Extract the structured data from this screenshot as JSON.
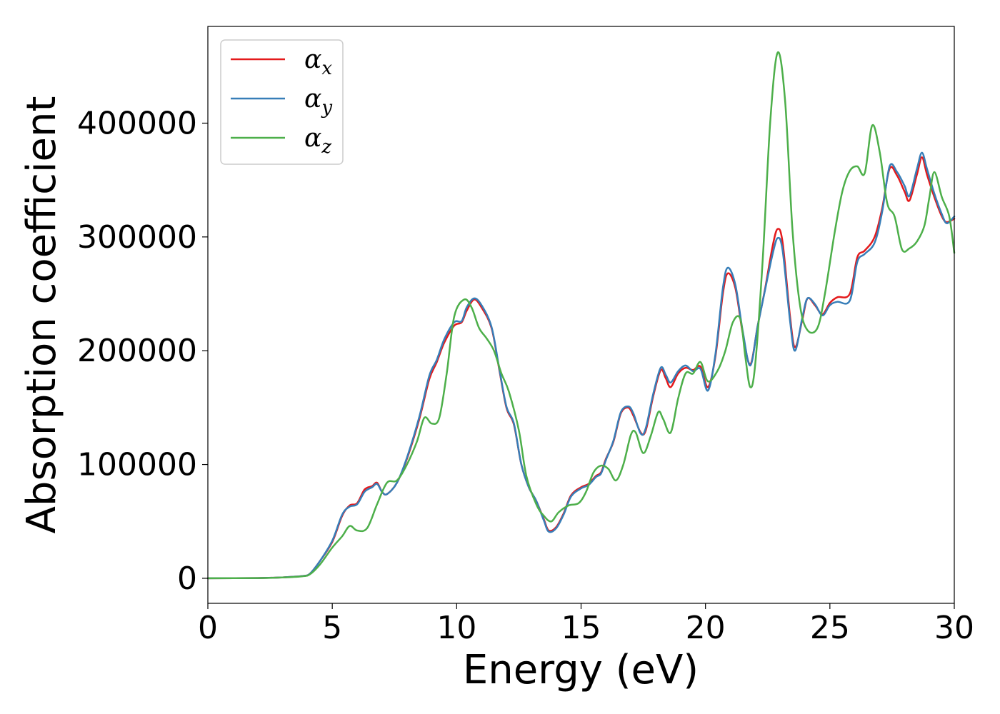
{
  "chart_data": {
    "type": "line",
    "title": "",
    "xlabel": "Energy (eV)",
    "ylabel": "Absorption coefficient",
    "xlim": [
      0,
      30
    ],
    "ylim": [
      -22000,
      485000
    ],
    "x_ticks": [
      0,
      5,
      10,
      15,
      20,
      25,
      30
    ],
    "y_ticks": [
      0,
      100000,
      200000,
      300000,
      400000
    ],
    "grid": false,
    "legend": {
      "position": "top-left"
    },
    "series": [
      {
        "name": "α",
        "subscript": "x",
        "color": "#e41a1c",
        "points": [
          [
            0,
            0
          ],
          [
            2,
            200
          ],
          [
            3,
            800
          ],
          [
            3.8,
            2000
          ],
          [
            4.1,
            4000
          ],
          [
            4.5,
            15000
          ],
          [
            5.0,
            32000
          ],
          [
            5.4,
            55000
          ],
          [
            5.7,
            64000
          ],
          [
            6.0,
            66000
          ],
          [
            6.3,
            78000
          ],
          [
            6.6,
            81000
          ],
          [
            6.8,
            84000
          ],
          [
            7.0,
            76000
          ],
          [
            7.2,
            74000
          ],
          [
            7.6,
            84000
          ],
          [
            8.0,
            105000
          ],
          [
            8.5,
            140000
          ],
          [
            8.9,
            175000
          ],
          [
            9.2,
            190000
          ],
          [
            9.5,
            207000
          ],
          [
            9.9,
            222000
          ],
          [
            10.2,
            225000
          ],
          [
            10.4,
            235000
          ],
          [
            10.7,
            245000
          ],
          [
            11.0,
            238000
          ],
          [
            11.4,
            220000
          ],
          [
            11.7,
            185000
          ],
          [
            12.0,
            150000
          ],
          [
            12.3,
            135000
          ],
          [
            12.6,
            100000
          ],
          [
            12.9,
            80000
          ],
          [
            13.2,
            68000
          ],
          [
            13.5,
            52000
          ],
          [
            13.7,
            42000
          ],
          [
            14.0,
            45000
          ],
          [
            14.3,
            57000
          ],
          [
            14.6,
            73000
          ],
          [
            15.0,
            80000
          ],
          [
            15.3,
            83000
          ],
          [
            15.6,
            90000
          ],
          [
            15.8,
            93000
          ],
          [
            16.0,
            105000
          ],
          [
            16.3,
            120000
          ],
          [
            16.6,
            145000
          ],
          [
            16.9,
            150000
          ],
          [
            17.1,
            143000
          ],
          [
            17.4,
            128000
          ],
          [
            17.6,
            130000
          ],
          [
            17.9,
            160000
          ],
          [
            18.2,
            183000
          ],
          [
            18.4,
            176000
          ],
          [
            18.6,
            168000
          ],
          [
            18.9,
            180000
          ],
          [
            19.2,
            185000
          ],
          [
            19.5,
            183000
          ],
          [
            19.8,
            186000
          ],
          [
            20.1,
            168000
          ],
          [
            20.4,
            195000
          ],
          [
            20.7,
            250000
          ],
          [
            20.9,
            268000
          ],
          [
            21.2,
            255000
          ],
          [
            21.5,
            215000
          ],
          [
            21.8,
            188000
          ],
          [
            22.1,
            222000
          ],
          [
            22.4,
            255000
          ],
          [
            22.7,
            292000
          ],
          [
            22.9,
            307000
          ],
          [
            23.1,
            295000
          ],
          [
            23.4,
            230000
          ],
          [
            23.6,
            203000
          ],
          [
            23.9,
            228000
          ],
          [
            24.1,
            246000
          ],
          [
            24.4,
            240000
          ],
          [
            24.7,
            232000
          ],
          [
            25.0,
            242000
          ],
          [
            25.3,
            247000
          ],
          [
            25.8,
            250000
          ],
          [
            26.1,
            282000
          ],
          [
            26.4,
            288000
          ],
          [
            26.8,
            300000
          ],
          [
            27.1,
            325000
          ],
          [
            27.4,
            360000
          ],
          [
            27.7,
            354000
          ],
          [
            28.0,
            340000
          ],
          [
            28.2,
            332000
          ],
          [
            28.5,
            355000
          ],
          [
            28.7,
            370000
          ],
          [
            28.9,
            355000
          ],
          [
            29.2,
            335000
          ],
          [
            29.5,
            318000
          ],
          [
            29.7,
            313000
          ],
          [
            30.0,
            316000
          ]
        ]
      },
      {
        "name": "α",
        "subscript": "y",
        "color": "#377eb8",
        "points": [
          [
            0,
            0
          ],
          [
            2,
            200
          ],
          [
            3,
            800
          ],
          [
            3.8,
            2000
          ],
          [
            4.1,
            4000
          ],
          [
            4.5,
            15000
          ],
          [
            5.0,
            33000
          ],
          [
            5.4,
            56000
          ],
          [
            5.7,
            63000
          ],
          [
            6.0,
            65000
          ],
          [
            6.3,
            76000
          ],
          [
            6.6,
            80000
          ],
          [
            6.8,
            83000
          ],
          [
            7.0,
            76000
          ],
          [
            7.2,
            74000
          ],
          [
            7.6,
            84000
          ],
          [
            8.0,
            106000
          ],
          [
            8.5,
            142000
          ],
          [
            8.9,
            178000
          ],
          [
            9.2,
            192000
          ],
          [
            9.5,
            210000
          ],
          [
            9.9,
            225000
          ],
          [
            10.2,
            226000
          ],
          [
            10.4,
            238000
          ],
          [
            10.7,
            246000
          ],
          [
            11.0,
            240000
          ],
          [
            11.4,
            221000
          ],
          [
            11.7,
            186000
          ],
          [
            12.0,
            151000
          ],
          [
            12.3,
            136000
          ],
          [
            12.6,
            100000
          ],
          [
            12.9,
            80000
          ],
          [
            13.2,
            68000
          ],
          [
            13.5,
            51000
          ],
          [
            13.7,
            41000
          ],
          [
            14.0,
            44000
          ],
          [
            14.3,
            56000
          ],
          [
            14.6,
            72000
          ],
          [
            15.0,
            79000
          ],
          [
            15.3,
            82000
          ],
          [
            15.6,
            89000
          ],
          [
            15.8,
            92000
          ],
          [
            16.0,
            104000
          ],
          [
            16.3,
            121000
          ],
          [
            16.6,
            146000
          ],
          [
            16.9,
            151000
          ],
          [
            17.1,
            145000
          ],
          [
            17.4,
            127000
          ],
          [
            17.6,
            132000
          ],
          [
            17.9,
            162000
          ],
          [
            18.2,
            185000
          ],
          [
            18.4,
            179000
          ],
          [
            18.6,
            172000
          ],
          [
            18.9,
            182000
          ],
          [
            19.2,
            187000
          ],
          [
            19.5,
            182000
          ],
          [
            19.8,
            184000
          ],
          [
            20.1,
            165000
          ],
          [
            20.4,
            197000
          ],
          [
            20.7,
            255000
          ],
          [
            20.9,
            273000
          ],
          [
            21.2,
            258000
          ],
          [
            21.5,
            217000
          ],
          [
            21.8,
            187000
          ],
          [
            22.1,
            222000
          ],
          [
            22.4,
            254000
          ],
          [
            22.7,
            285000
          ],
          [
            22.9,
            299000
          ],
          [
            23.1,
            288000
          ],
          [
            23.4,
            226000
          ],
          [
            23.6,
            200000
          ],
          [
            23.9,
            230000
          ],
          [
            24.1,
            246000
          ],
          [
            24.4,
            241000
          ],
          [
            24.7,
            231000
          ],
          [
            25.0,
            240000
          ],
          [
            25.3,
            243000
          ],
          [
            25.8,
            244000
          ],
          [
            26.1,
            278000
          ],
          [
            26.4,
            285000
          ],
          [
            26.8,
            295000
          ],
          [
            27.1,
            322000
          ],
          [
            27.4,
            362000
          ],
          [
            27.7,
            357000
          ],
          [
            28.0,
            345000
          ],
          [
            28.2,
            336000
          ],
          [
            28.5,
            360000
          ],
          [
            28.7,
            374000
          ],
          [
            28.9,
            360000
          ],
          [
            29.2,
            338000
          ],
          [
            29.5,
            320000
          ],
          [
            29.7,
            312000
          ],
          [
            30.0,
            318000
          ]
        ]
      },
      {
        "name": "α",
        "subscript": "z",
        "color": "#4daf4a",
        "points": [
          [
            0,
            0
          ],
          [
            2,
            200
          ],
          [
            3,
            700
          ],
          [
            3.8,
            1800
          ],
          [
            4.1,
            3500
          ],
          [
            4.5,
            12000
          ],
          [
            5.0,
            27000
          ],
          [
            5.4,
            37000
          ],
          [
            5.7,
            46000
          ],
          [
            6.0,
            42000
          ],
          [
            6.4,
            44000
          ],
          [
            6.8,
            65000
          ],
          [
            7.2,
            84000
          ],
          [
            7.6,
            86000
          ],
          [
            8.0,
            100000
          ],
          [
            8.4,
            120000
          ],
          [
            8.7,
            141000
          ],
          [
            9.0,
            136000
          ],
          [
            9.3,
            141000
          ],
          [
            9.6,
            180000
          ],
          [
            9.9,
            230000
          ],
          [
            10.3,
            245000
          ],
          [
            10.6,
            238000
          ],
          [
            10.9,
            220000
          ],
          [
            11.2,
            211000
          ],
          [
            11.5,
            200000
          ],
          [
            11.8,
            180000
          ],
          [
            12.1,
            164000
          ],
          [
            12.5,
            130000
          ],
          [
            12.8,
            90000
          ],
          [
            13.2,
            65000
          ],
          [
            13.5,
            55000
          ],
          [
            13.8,
            50000
          ],
          [
            14.1,
            58000
          ],
          [
            14.5,
            64000
          ],
          [
            14.9,
            66000
          ],
          [
            15.2,
            76000
          ],
          [
            15.5,
            93000
          ],
          [
            15.8,
            99000
          ],
          [
            16.1,
            96000
          ],
          [
            16.4,
            86000
          ],
          [
            16.7,
            100000
          ],
          [
            17.0,
            126000
          ],
          [
            17.2,
            128000
          ],
          [
            17.5,
            110000
          ],
          [
            17.8,
            125000
          ],
          [
            18.1,
            146000
          ],
          [
            18.3,
            140000
          ],
          [
            18.6,
            128000
          ],
          [
            18.9,
            158000
          ],
          [
            19.2,
            180000
          ],
          [
            19.5,
            180000
          ],
          [
            19.8,
            190000
          ],
          [
            20.1,
            173000
          ],
          [
            20.5,
            183000
          ],
          [
            20.8,
            200000
          ],
          [
            21.1,
            225000
          ],
          [
            21.4,
            228000
          ],
          [
            21.6,
            195000
          ],
          [
            21.8,
            168000
          ],
          [
            22.0,
            188000
          ],
          [
            22.3,
            280000
          ],
          [
            22.6,
            400000
          ],
          [
            22.9,
            462000
          ],
          [
            23.2,
            420000
          ],
          [
            23.5,
            305000
          ],
          [
            23.8,
            240000
          ],
          [
            24.1,
            218000
          ],
          [
            24.5,
            220000
          ],
          [
            24.8,
            250000
          ],
          [
            25.2,
            305000
          ],
          [
            25.5,
            340000
          ],
          [
            25.8,
            358000
          ],
          [
            26.1,
            362000
          ],
          [
            26.4,
            356000
          ],
          [
            26.7,
            398000
          ],
          [
            27.0,
            375000
          ],
          [
            27.3,
            330000
          ],
          [
            27.6,
            318000
          ],
          [
            27.9,
            289000
          ],
          [
            28.2,
            290000
          ],
          [
            28.5,
            296000
          ],
          [
            28.8,
            310000
          ],
          [
            29.0,
            335000
          ],
          [
            29.2,
            357000
          ],
          [
            29.5,
            335000
          ],
          [
            29.8,
            318000
          ],
          [
            30.0,
            286000
          ]
        ]
      }
    ]
  }
}
